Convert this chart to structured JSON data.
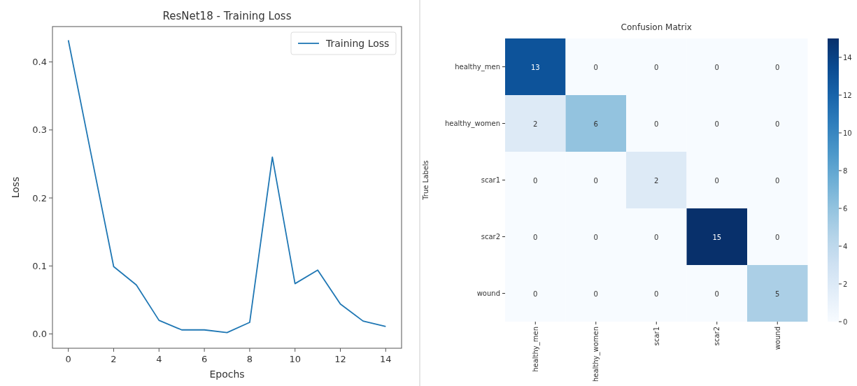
{
  "chart_data": [
    {
      "type": "line",
      "title": "ResNet18 - Training Loss",
      "xlabel": "Epochs",
      "ylabel": "Loss",
      "x": [
        0,
        1,
        2,
        3,
        4,
        5,
        6,
        7,
        8,
        9,
        10,
        11,
        12,
        13,
        14
      ],
      "series": [
        {
          "name": "Training Loss",
          "color": "#1f77b4",
          "values": [
            0.432,
            0.265,
            0.099,
            0.072,
            0.02,
            0.006,
            0.006,
            0.002,
            0.017,
            0.26,
            0.074,
            0.094,
            0.044,
            0.019,
            0.011
          ]
        }
      ],
      "xlim": [
        -0.7,
        14.7
      ],
      "xticks": [
        0,
        2,
        4,
        6,
        8,
        10,
        12,
        14
      ],
      "ylim": [
        -0.021,
        0.452
      ],
      "yticks": [
        {
          "value": 0,
          "label": "0.0"
        },
        0.1,
        0.2,
        0.3,
        0.4
      ],
      "legend": "top right",
      "grid": false
    },
    {
      "type": "heatmap",
      "title": "Confusion Matrix",
      "ylabel": "True Labels",
      "categories": [
        "healthy_men",
        "healthy_women",
        "scar1",
        "scar2",
        "wound"
      ],
      "y_categories": [
        "healthy_men",
        "healthy_women",
        "scar1",
        "scar2",
        "wound"
      ],
      "cells": [
        [
          13,
          0,
          0,
          0,
          0
        ],
        [
          2,
          6,
          0,
          0,
          0
        ],
        [
          0,
          0,
          2,
          0,
          0
        ],
        [
          0,
          0,
          0,
          15,
          0
        ],
        [
          0,
          0,
          0,
          0,
          5
        ]
      ],
      "clim": [
        0,
        15
      ],
      "cticks": [
        0,
        2,
        4,
        6,
        8,
        10,
        12,
        14
      ],
      "data_labels": true
    }
  ]
}
